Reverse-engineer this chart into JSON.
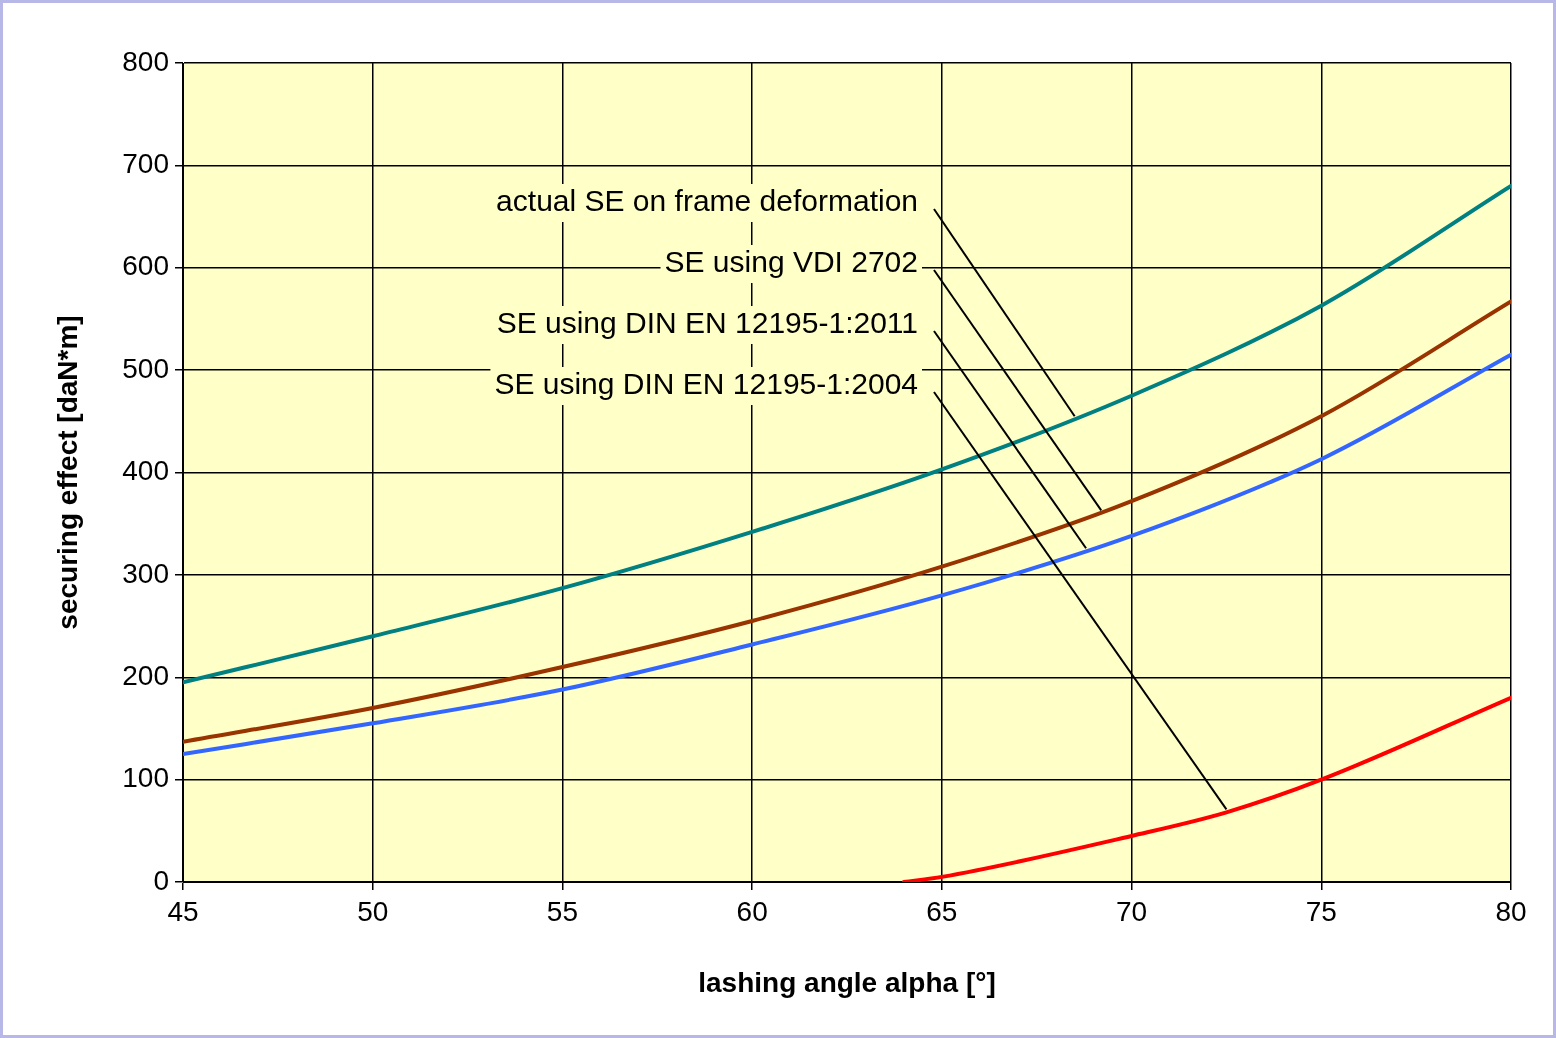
{
  "chart_data": {
    "type": "line",
    "xlabel": "lashing angle alpha [°]",
    "ylabel": "securing effect [daN*m]",
    "xlim": [
      45,
      80
    ],
    "xticks": [
      45,
      50,
      55,
      60,
      65,
      70,
      75,
      80
    ],
    "ylim": [
      0,
      800
    ],
    "yticks": [
      0,
      100,
      200,
      300,
      400,
      500,
      600,
      700,
      800
    ],
    "grid": true,
    "legend": false,
    "marker": "none",
    "line_style": "solid",
    "series": [
      {
        "color": "#008080",
        "x": [
          45,
          50,
          55,
          60,
          65,
          70,
          75,
          80
        ],
        "values": [
          195,
          240,
          287,
          342,
          403,
          475,
          563,
          680
        ]
      },
      {
        "color": "#993300",
        "x": [
          45,
          50,
          55,
          60,
          65,
          70,
          75,
          80
        ],
        "values": [
          137,
          170,
          210,
          255,
          308,
          372,
          455,
          567
        ]
      },
      {
        "color": "#3366ff",
        "x": [
          45,
          50,
          55,
          60,
          65,
          70,
          75,
          80
        ],
        "values": [
          125,
          155,
          188,
          232,
          280,
          338,
          413,
          515
        ]
      },
      {
        "color": "#ff0000",
        "x": [
          64,
          65,
          70,
          72.5,
          75,
          80
        ],
        "values": [
          0,
          5,
          45,
          68,
          100,
          180
        ]
      }
    ],
    "annotations": [
      {
        "text": "actual SE on frame deformation",
        "x": 68.5,
        "y": 455
      },
      {
        "text": "SE using VDI 2702",
        "x": 69.2,
        "y": 363
      },
      {
        "text": "SE using DIN EN 12195-1:2011",
        "x": 68.8,
        "y": 326
      },
      {
        "text": "SE using DIN EN 12195-1:2004",
        "x": 72.5,
        "y": 71
      }
    ]
  }
}
